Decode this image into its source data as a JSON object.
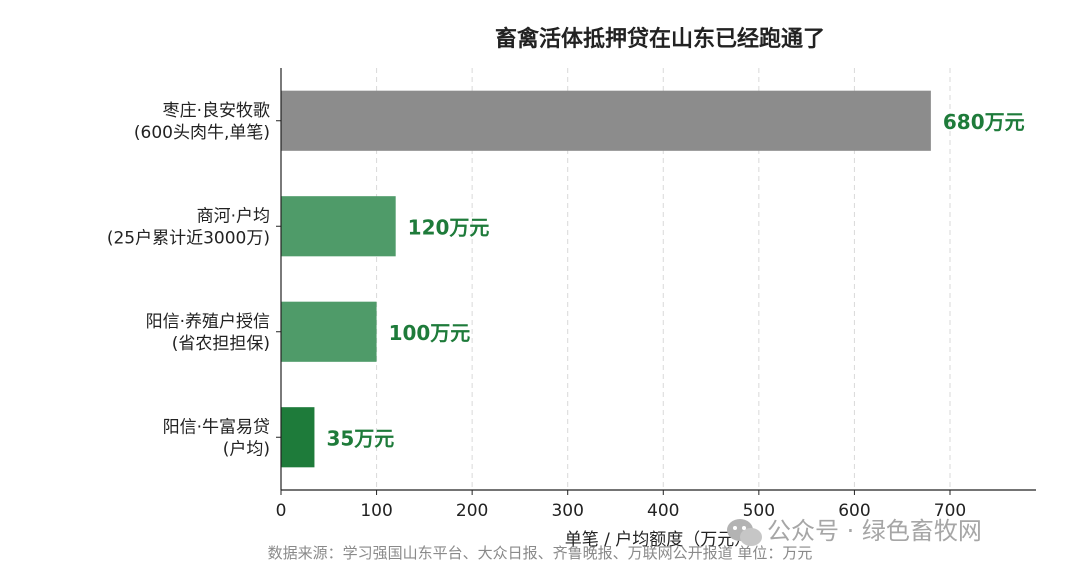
{
  "chart_data": {
    "type": "bar",
    "orientation": "horizontal",
    "title": "畜禽活体抵押贷在山东已经跑通了",
    "xlabel": "单笔 / 户均额度（万元）",
    "ylabel": "",
    "xlim": [
      0,
      790
    ],
    "xticks": [
      0,
      100,
      200,
      300,
      400,
      500,
      600,
      700
    ],
    "grid": "vertical-dashed",
    "categories": [
      [
        "枣庄·良安牧歌",
        "(600头肉牛,单笔)"
      ],
      [
        "商河·户均",
        "(25户累计近3000万)"
      ],
      [
        "阳信·养殖户授信",
        "(省农担担保)"
      ],
      [
        "阳信·牛富易贷",
        "(户均)"
      ]
    ],
    "values": [
      680,
      120,
      100,
      35
    ],
    "value_labels": [
      "680万元",
      "120万元",
      "100万元",
      "35万元"
    ],
    "bar_colors": [
      "#8c8c8c",
      "#4f9b69",
      "#4f9b69",
      "#1e7b3a"
    ],
    "label_color": "#1e7b3a"
  },
  "footer": {
    "source": "数据来源：学习强国山东平台、大众日报、齐鲁晚报、万联网公开报道    单位：万元"
  },
  "watermark": {
    "icon": "wechat-icon",
    "text": "公众号 · 绿色畜牧网"
  }
}
